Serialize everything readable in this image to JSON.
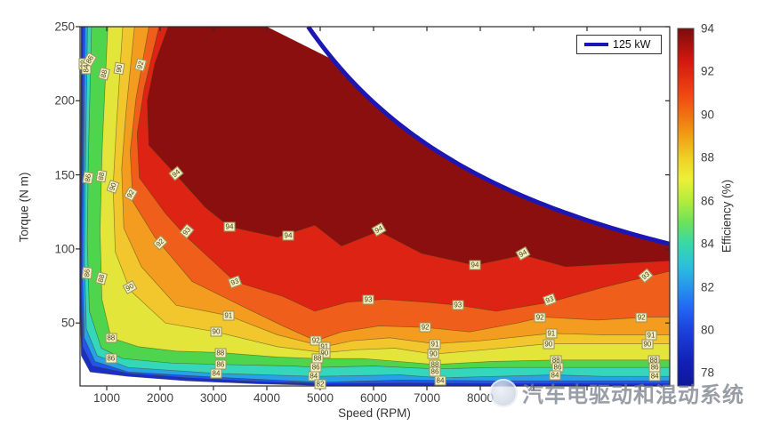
{
  "chart_data": {
    "type": "filled-contour",
    "title": "",
    "xlabel": "Speed (RPM)",
    "ylabel": "Torque (N m)",
    "xlim": [
      500,
      11550
    ],
    "ylim": [
      7.5,
      250
    ],
    "grid": false,
    "x_ticks": [
      {
        "rpm": 1000,
        "label": "1000"
      },
      {
        "rpm": 2000,
        "label": "2000"
      },
      {
        "rpm": 3000,
        "label": "3000"
      },
      {
        "rpm": 4000,
        "label": "4000"
      },
      {
        "rpm": 5000,
        "label": "5000"
      },
      {
        "rpm": 6000,
        "label": "6000"
      },
      {
        "rpm": 7000,
        "label": "7000"
      },
      {
        "rpm": 8000,
        "label": "8000"
      },
      {
        "rpm": 9000,
        "label": ""
      },
      {
        "rpm": 10000,
        "label": ""
      },
      {
        "rpm": 11000,
        "label": ""
      }
    ],
    "y_ticks": [
      {
        "t": 50,
        "label": "50"
      },
      {
        "t": 100,
        "label": "100"
      },
      {
        "t": 150,
        "label": "150"
      },
      {
        "t": 200,
        "label": "200"
      },
      {
        "t": 250,
        "label": "250"
      }
    ],
    "colorbar": {
      "label": "Efficiency (%)",
      "min": 77.4,
      "max": 94,
      "tick_labels": [
        "94",
        "92",
        "90",
        "88",
        "86",
        "84",
        "82",
        "80",
        "78"
      ],
      "tick_values": [
        94,
        92,
        90,
        88,
        86,
        84,
        82,
        80,
        78
      ],
      "gradient": [
        [
          94,
          "#7a0c0c"
        ],
        [
          92.5,
          "#d31810"
        ],
        [
          91,
          "#ee4511"
        ],
        [
          90,
          "#f07012"
        ],
        [
          89,
          "#f09f16"
        ],
        [
          88,
          "#eed027"
        ],
        [
          87,
          "#ecf039"
        ],
        [
          86,
          "#b4ec3c"
        ],
        [
          85,
          "#6ce25a"
        ],
        [
          84,
          "#38d8a8"
        ],
        [
          83,
          "#2cc0dc"
        ],
        [
          82,
          "#2696ec"
        ],
        [
          81,
          "#2266f2"
        ],
        [
          80,
          "#1c42dc"
        ],
        [
          78.5,
          "#1220b4"
        ],
        [
          77.4,
          "#0e189c"
        ]
      ]
    },
    "levels": [
      78,
      80,
      82,
      84,
      86,
      88,
      90,
      91,
      92,
      93,
      94
    ],
    "band_colors": {
      "78": "#1b2ec6",
      "80": "#2355ee",
      "82": "#28a2e6",
      "84": "#35d7bb",
      "86": "#4fd44d",
      "88": "#e4e53a",
      "90": "#f2c72e",
      "91": "#f39c20",
      "92": "#ef5f1b",
      "93": "#dd2414",
      "94": "#8c0f10"
    },
    "contour_lines": {
      "78": [
        [
          520,
          250
        ],
        [
          508,
          122
        ],
        [
          503,
          62
        ],
        [
          523,
          28
        ],
        [
          690,
          17
        ],
        [
          1400,
          14
        ],
        [
          2500,
          11
        ],
        [
          3800,
          9
        ],
        [
          5300,
          7.5
        ],
        [
          11550,
          7.5
        ]
      ],
      "80": [
        [
          555,
          250
        ],
        [
          533,
          132
        ],
        [
          523,
          72
        ],
        [
          548,
          34
        ],
        [
          730,
          21
        ],
        [
          1400,
          16
        ],
        [
          2500,
          13
        ],
        [
          3800,
          10.5
        ],
        [
          5080,
          9
        ],
        [
          6500,
          9.5
        ],
        [
          8000,
          9.2
        ],
        [
          11550,
          9
        ]
      ],
      "82": [
        [
          595,
          250
        ],
        [
          563,
          142
        ],
        [
          548,
          82
        ],
        [
          578,
          40
        ],
        [
          780,
          24
        ],
        [
          1400,
          17
        ],
        [
          3000,
          13.5
        ],
        [
          5000,
          10
        ],
        [
          6500,
          11.5
        ],
        [
          8300,
          11
        ],
        [
          10300,
          11
        ],
        [
          11550,
          11
        ]
      ],
      "84": [
        [
          640,
          250
        ],
        [
          598,
          150
        ],
        [
          582,
          92
        ],
        [
          618,
          46
        ],
        [
          820,
          28
        ],
        [
          1400,
          20
        ],
        [
          3050,
          16
        ],
        [
          4880,
          14
        ],
        [
          6500,
          15
        ],
        [
          7250,
          13
        ],
        [
          8300,
          14
        ],
        [
          9400,
          15
        ],
        [
          10300,
          14
        ],
        [
          11550,
          14
        ]
      ],
      "86": [
        [
          715,
          250
        ],
        [
          655,
          160
        ],
        [
          635,
          105
        ],
        [
          675,
          58
        ],
        [
          900,
          33
        ],
        [
          1300,
          26
        ],
        [
          2200,
          23
        ],
        [
          3130,
          22
        ],
        [
          4500,
          21
        ],
        [
          4920,
          20
        ],
        [
          6000,
          21
        ],
        [
          7150,
          19
        ],
        [
          8300,
          20
        ],
        [
          9450,
          20
        ],
        [
          10300,
          20
        ],
        [
          11550,
          20
        ]
      ],
      "88": [
        [
          1020,
          250
        ],
        [
          915,
          168
        ],
        [
          875,
          112
        ],
        [
          910,
          66
        ],
        [
          1080,
          40
        ],
        [
          1600,
          34
        ],
        [
          2300,
          31
        ],
        [
          3130,
          30
        ],
        [
          4200,
          27
        ],
        [
          4950,
          26
        ],
        [
          5800,
          26
        ],
        [
          7150,
          22
        ],
        [
          8200,
          24
        ],
        [
          9420,
          25
        ],
        [
          10300,
          25
        ],
        [
          11250,
          25
        ],
        [
          11550,
          25
        ]
      ],
      "90": [
        [
          1300,
          250
        ],
        [
          1180,
          182
        ],
        [
          1120,
          142
        ],
        [
          1160,
          98
        ],
        [
          1440,
          72
        ],
        [
          2100,
          50
        ],
        [
          3050,
          44
        ],
        [
          4200,
          34
        ],
        [
          5080,
          30
        ],
        [
          5700,
          32
        ],
        [
          6400,
          33
        ],
        [
          7120,
          29
        ],
        [
          8100,
          32
        ],
        [
          9280,
          36
        ],
        [
          10300,
          36
        ],
        [
          11130,
          36
        ],
        [
          11550,
          36
        ]
      ],
      "91": [
        [
          1520,
          250
        ],
        [
          1360,
          192
        ],
        [
          1280,
          154
        ],
        [
          1320,
          114
        ],
        [
          1650,
          88
        ],
        [
          2300,
          62
        ],
        [
          3280,
          55
        ],
        [
          4200,
          42
        ],
        [
          5080,
          34
        ],
        [
          5600,
          38
        ],
        [
          6300,
          40
        ],
        [
          7150,
          36
        ],
        [
          8000,
          38
        ],
        [
          9330,
          43
        ],
        [
          10300,
          42
        ],
        [
          11200,
          42
        ],
        [
          11550,
          42
        ]
      ],
      "92": [
        [
          1790,
          250
        ],
        [
          1550,
          202
        ],
        [
          1440,
          166
        ],
        [
          1490,
          132
        ],
        [
          1900,
          108
        ],
        [
          2600,
          78
        ],
        [
          3500,
          62
        ],
        [
          4300,
          48
        ],
        [
          4920,
          38
        ],
        [
          5400,
          44
        ],
        [
          6100,
          48
        ],
        [
          6970,
          47
        ],
        [
          7800,
          44
        ],
        [
          8700,
          50
        ],
        [
          9170,
          54
        ],
        [
          10200,
          52
        ],
        [
          11170,
          54
        ],
        [
          11550,
          54
        ]
      ],
      "93": [
        [
          1980,
          250
        ],
        [
          1700,
          208
        ],
        [
          1570,
          178
        ],
        [
          1610,
          148
        ],
        [
          2100,
          124
        ],
        [
          2500,
          108
        ],
        [
          3400,
          78
        ],
        [
          4300,
          68
        ],
        [
          4900,
          58
        ],
        [
          5500,
          64
        ],
        [
          6200,
          66
        ],
        [
          7000,
          64
        ],
        [
          7580,
          62
        ],
        [
          8300,
          58
        ],
        [
          9300,
          64
        ],
        [
          10300,
          74
        ],
        [
          11550,
          85
        ]
      ],
      "94": [
        [
          2150,
          250
        ],
        [
          1900,
          225
        ],
        [
          1760,
          200
        ],
        [
          1790,
          170
        ],
        [
          2300,
          150
        ],
        [
          2850,
          128
        ],
        [
          3300,
          115
        ],
        [
          4200,
          108
        ],
        [
          4900,
          116
        ],
        [
          5400,
          102
        ],
        [
          6100,
          112
        ],
        [
          6900,
          97
        ],
        [
          7900,
          89
        ],
        [
          8800,
          96
        ],
        [
          9600,
          88
        ],
        [
          10500,
          90
        ],
        [
          11550,
          92
        ]
      ]
    },
    "power_curve": {
      "label": "125 kW",
      "power_kw": 125,
      "color": "#1c16b4",
      "width": 5
    },
    "no_data_edge": [
      [
        4000,
        250
      ],
      [
        5333,
        226
      ]
    ],
    "contour_labels": [
      [
        82,
        570,
        225,
        90
      ],
      [
        84,
        615,
        222,
        90
      ],
      [
        86,
        680,
        228,
        60
      ],
      [
        88,
        950,
        218,
        75
      ],
      [
        90,
        1240,
        222,
        80
      ],
      [
        92,
        1640,
        224,
        75
      ],
      [
        86,
        648,
        148,
        80
      ],
      [
        88,
        895,
        149,
        80
      ],
      [
        90,
        1115,
        142,
        70
      ],
      [
        92,
        1455,
        137,
        60
      ],
      [
        86,
        640,
        84,
        85
      ],
      [
        88,
        905,
        80,
        75
      ],
      [
        90,
        1440,
        74,
        30
      ],
      [
        94,
        2300,
        151,
        40
      ],
      [
        94,
        3300,
        115,
        0
      ],
      [
        94,
        4400,
        109,
        0
      ],
      [
        94,
        6100,
        113,
        30
      ],
      [
        94,
        7900,
        89,
        0
      ],
      [
        94,
        8800,
        97,
        30
      ],
      [
        93,
        2500,
        112,
        50
      ],
      [
        93,
        3400,
        78,
        20
      ],
      [
        93,
        5900,
        66,
        0
      ],
      [
        93,
        7580,
        62,
        0
      ],
      [
        93,
        9300,
        66,
        20
      ],
      [
        93,
        11100,
        82,
        40
      ],
      [
        92,
        2000,
        104,
        45
      ],
      [
        92,
        4920,
        38,
        0
      ],
      [
        92,
        6967,
        47,
        0
      ],
      [
        92,
        9120,
        54,
        0
      ],
      [
        92,
        11020,
        54,
        0
      ],
      [
        91,
        3280,
        55,
        0
      ],
      [
        91,
        5080,
        34,
        0
      ],
      [
        91,
        7150,
        36,
        0
      ],
      [
        91,
        9330,
        43,
        0
      ],
      [
        91,
        11200,
        42,
        0
      ],
      [
        90,
        3050,
        44,
        0
      ],
      [
        90,
        5080,
        30,
        0
      ],
      [
        90,
        7120,
        29,
        0
      ],
      [
        90,
        9280,
        36,
        0
      ],
      [
        90,
        11130,
        36,
        0
      ],
      [
        88,
        1080,
        40,
        0
      ],
      [
        88,
        3130,
        30,
        0
      ],
      [
        88,
        4950,
        26,
        0
      ],
      [
        88,
        7150,
        22,
        0
      ],
      [
        88,
        9420,
        25,
        0
      ],
      [
        88,
        11250,
        25,
        0
      ],
      [
        86,
        1080,
        26,
        0
      ],
      [
        86,
        3130,
        22,
        0
      ],
      [
        86,
        4920,
        20,
        0
      ],
      [
        86,
        7150,
        17,
        0
      ],
      [
        86,
        9450,
        20,
        0
      ],
      [
        86,
        11270,
        20,
        0
      ],
      [
        84,
        3050,
        16,
        0
      ],
      [
        84,
        4880,
        14,
        0
      ],
      [
        84,
        7250,
        11,
        0
      ],
      [
        84,
        9400,
        15,
        0
      ],
      [
        84,
        11270,
        14,
        0
      ],
      [
        82,
        5000,
        9,
        0
      ]
    ],
    "watermark": {
      "text": "汽车电驱动和混动系统"
    }
  }
}
